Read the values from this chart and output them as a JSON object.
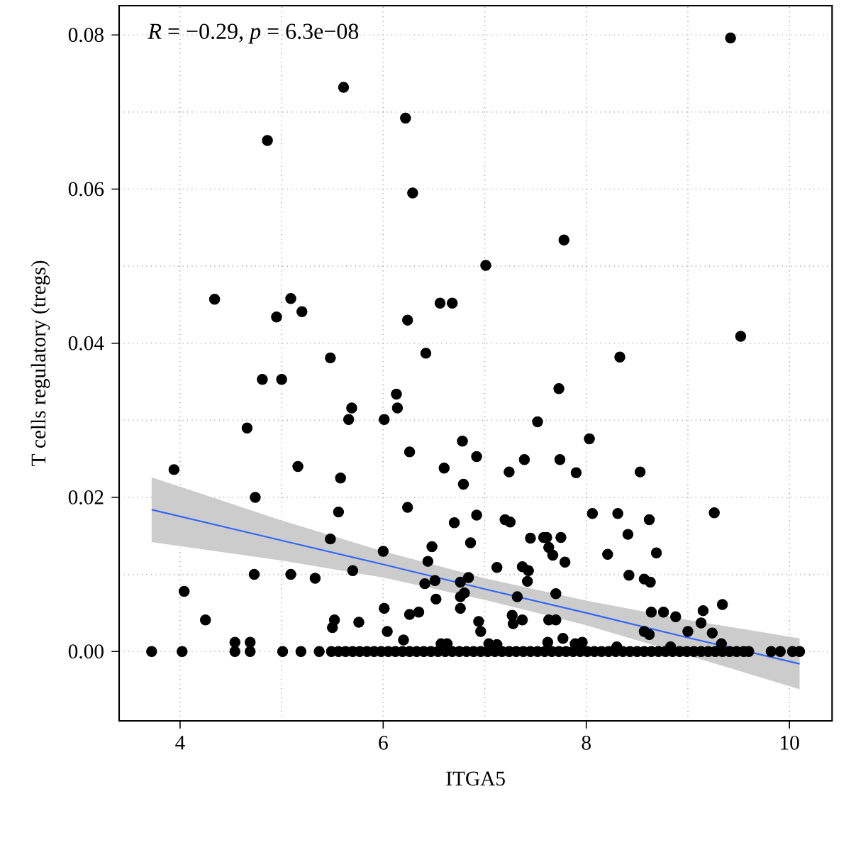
{
  "chart_data": {
    "type": "scatter",
    "xlabel": "ITGA5",
    "ylabel": "T cells regulatory (tregs)",
    "annotations": [
      "*R* = −0.29, *p* = 6.3e−08"
    ],
    "xlim": [
      3.4,
      10.42
    ],
    "ylim": [
      -0.009,
      0.0838
    ],
    "xticks": [
      4,
      6,
      8,
      10
    ],
    "yticks": [
      {
        "value": 0,
        "label": "0.00"
      },
      {
        "value": 0.02,
        "label": "0.02"
      },
      {
        "value": 0.04,
        "label": "0.04"
      },
      {
        "value": 0.06,
        "label": "0.06"
      },
      {
        "value": 0.08,
        "label": "0.08"
      }
    ],
    "grid": true,
    "series": [
      {
        "color": "#000000",
        "marker": "circle",
        "x": [
          5.61,
          6.22,
          4.86,
          6.29,
          4.34,
          5.09,
          5.2,
          4.95,
          6.24,
          9.42,
          7.01,
          7.78,
          6.56,
          6.68,
          9.52,
          5.48,
          6.42,
          4.81,
          5.0,
          6.13,
          5.69,
          6.14,
          5.66,
          6.01,
          4.66,
          6.26,
          3.94,
          5.16,
          5.58,
          4.74,
          6.24,
          5.56,
          5.48,
          6.48,
          6.0,
          6.44,
          5.7,
          4.73,
          5.09,
          5.33,
          6.51,
          6.41,
          4.04,
          6.52,
          6.01,
          6.26,
          6.35,
          4.25,
          5.52,
          5.5,
          5.76,
          6.04,
          6.2,
          4.54,
          4.69,
          8.33,
          7.73,
          7.52,
          6.78,
          8.03,
          6.92,
          7.39,
          7.74,
          6.6,
          6.79,
          7.24,
          7.9,
          8.53,
          9.26,
          8.06,
          8.31,
          6.92,
          7.2,
          7.25,
          6.7,
          8.62,
          8.41,
          7.45,
          7.58,
          7.61,
          7.75,
          6.86,
          7.63,
          8.21,
          8.69,
          7.67,
          7.79,
          7.12,
          7.37,
          7.43,
          7.42,
          8.42,
          8.57,
          8.63,
          6.84,
          6.76,
          9.34,
          9.15,
          6.8,
          6.76,
          7.7,
          7.32,
          6.76,
          8.64,
          8.76,
          8.88,
          9.0,
          8.57,
          8.62,
          9.24,
          6.94,
          6.96,
          7.27,
          7.37,
          7.28,
          7.63,
          7.7,
          7.77,
          7.62,
          7.04,
          7.12,
          7.89,
          7.96,
          6.57,
          6.63,
          8.3,
          8.83,
          9.33,
          9.13,
          3.72,
          4.02,
          4.54,
          4.69,
          5.01,
          5.19,
          5.37,
          5.49,
          5.56,
          5.63,
          5.7,
          5.77,
          5.84,
          5.91,
          5.98,
          6.05,
          6.12,
          6.19,
          6.26,
          6.33,
          6.4,
          6.47,
          6.54,
          6.61,
          6.68,
          6.75,
          6.82,
          6.89,
          6.96,
          7.03,
          7.1,
          7.17,
          7.24,
          7.31,
          7.38,
          7.45,
          7.52,
          7.59,
          7.66,
          7.73,
          7.8,
          7.87,
          7.94,
          8.01,
          8.08,
          8.15,
          8.22,
          8.29,
          8.36,
          8.43,
          8.5,
          8.57,
          8.64,
          8.71,
          8.78,
          8.85,
          8.92,
          8.99,
          9.06,
          9.13,
          9.2,
          9.27,
          9.34,
          9.41,
          9.48,
          9.55,
          9.6,
          9.82,
          9.91,
          10.03,
          10.1
        ],
        "values": [
          0.0732,
          0.0692,
          0.0663,
          0.0595,
          0.0457,
          0.0458,
          0.0441,
          0.0434,
          0.043,
          0.0796,
          0.0501,
          0.0534,
          0.0452,
          0.0452,
          0.0409,
          0.0381,
          0.0387,
          0.0353,
          0.0353,
          0.0334,
          0.0316,
          0.0316,
          0.0301,
          0.0301,
          0.029,
          0.0259,
          0.0236,
          0.024,
          0.0225,
          0.02,
          0.0187,
          0.0181,
          0.0146,
          0.0136,
          0.013,
          0.0117,
          0.0105,
          0.01,
          0.01,
          0.0095,
          0.0092,
          0.0088,
          0.0078,
          0.0068,
          0.0056,
          0.0048,
          0.0051,
          0.0041,
          0.0041,
          0.0031,
          0.0038,
          0.0026,
          0.0015,
          0.0012,
          0.0012,
          0.0382,
          0.0341,
          0.0298,
          0.0273,
          0.0276,
          0.0253,
          0.0249,
          0.0249,
          0.0238,
          0.0217,
          0.0233,
          0.0232,
          0.0233,
          0.018,
          0.0179,
          0.0179,
          0.0177,
          0.0171,
          0.0168,
          0.0167,
          0.0171,
          0.0152,
          0.0147,
          0.0148,
          0.0148,
          0.0148,
          0.0141,
          0.0135,
          0.0126,
          0.0128,
          0.0125,
          0.0116,
          0.0109,
          0.011,
          0.0105,
          0.0091,
          0.0099,
          0.0094,
          0.009,
          0.0096,
          0.009,
          0.0061,
          0.0053,
          0.0076,
          0.0071,
          0.0075,
          0.0071,
          0.0056,
          0.0051,
          0.0051,
          0.0045,
          0.0026,
          0.0026,
          0.0022,
          0.0024,
          0.0039,
          0.0026,
          0.0047,
          0.0041,
          0.0036,
          0.0041,
          0.0041,
          0.0017,
          0.0012,
          0.001,
          0.0009,
          0.001,
          0.0012,
          0.001,
          0.001,
          0.0006,
          0.0006,
          0.001,
          0.0037,
          0,
          0,
          0,
          0,
          0,
          0,
          0,
          0,
          0,
          0,
          0,
          0,
          0,
          0,
          0,
          0,
          0,
          0,
          0,
          0,
          0,
          0,
          0,
          0,
          0,
          0,
          0,
          0,
          0,
          0,
          0,
          0,
          0,
          0,
          0,
          0,
          0,
          0,
          0,
          0,
          0,
          0,
          0,
          0,
          0,
          0,
          0,
          0,
          0,
          0,
          0,
          0,
          0,
          0,
          0,
          0,
          0,
          0,
          0,
          0,
          0,
          0,
          0,
          0,
          0,
          0,
          0,
          0,
          0,
          0,
          0
        ]
      },
      {
        "type": "line",
        "marker": "none",
        "color": "#3366ff",
        "x": [
          3.72,
          5,
          6,
          7,
          8,
          9,
          10.1
        ],
        "values": [
          0.0184,
          0.0144,
          0.0113,
          0.0081,
          0.005,
          0.0018,
          -0.0016
        ],
        "lower": [
          0.0142,
          0.0118,
          0.0096,
          0.0067,
          0.0034,
          -0.0005,
          -0.0049
        ],
        "upper": [
          0.0226,
          0.017,
          0.013,
          0.0095,
          0.0066,
          0.0041,
          0.0017
        ]
      }
    ]
  }
}
